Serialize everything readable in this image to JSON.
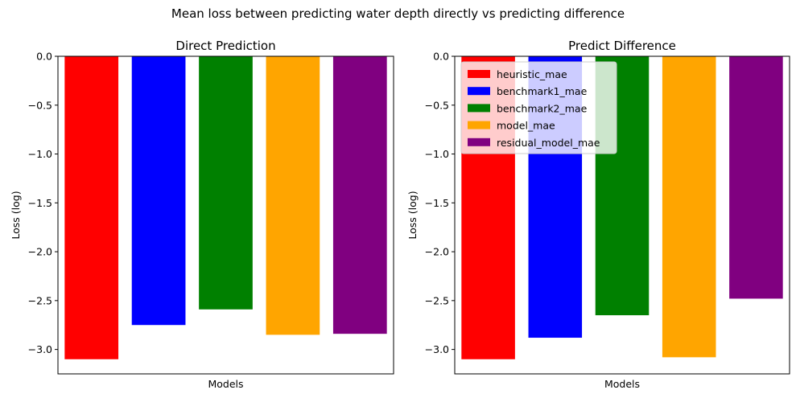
{
  "suptitle": "Mean loss between predicting water depth directly vs predicting difference",
  "chart_data": [
    {
      "type": "bar",
      "title": "Direct Prediction",
      "xlabel": "Models",
      "ylabel": "Loss (log)",
      "ylim": [
        -3.25,
        0.0
      ],
      "yticks": [
        "0.0",
        "−0.5",
        "−1.0",
        "−1.5",
        "−2.0",
        "−2.5",
        "−3.0"
      ],
      "categories": [
        "heuristic_mae",
        "benchmark1_mae",
        "benchmark2_mae",
        "model_mae",
        "residual_model_mae"
      ],
      "values": [
        -3.1,
        -2.75,
        -2.59,
        -2.85,
        -2.84
      ],
      "colors": [
        "#ff0000",
        "#0000ff",
        "#008000",
        "#ffa500",
        "#800080"
      ],
      "legend": false
    },
    {
      "type": "bar",
      "title": "Predict Difference",
      "xlabel": "Models",
      "ylabel": "Loss (log)",
      "ylim": [
        -3.25,
        0.0
      ],
      "yticks": [
        "0.0",
        "−0.5",
        "−1.0",
        "−1.5",
        "−2.0",
        "−2.5",
        "−3.0"
      ],
      "categories": [
        "heuristic_mae",
        "benchmark1_mae",
        "benchmark2_mae",
        "model_mae",
        "residual_model_mae"
      ],
      "values": [
        -3.1,
        -2.88,
        -2.65,
        -3.08,
        -2.48
      ],
      "colors": [
        "#ff0000",
        "#0000ff",
        "#008000",
        "#ffa500",
        "#800080"
      ],
      "legend": true,
      "legend_position": "top-left"
    }
  ]
}
